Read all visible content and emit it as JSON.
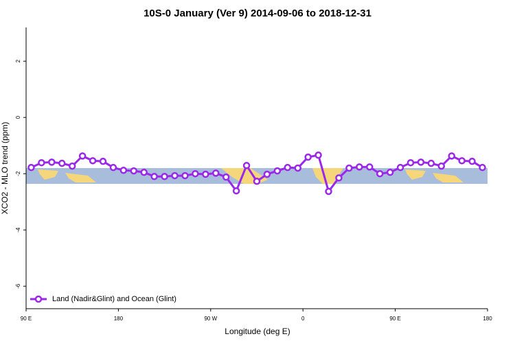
{
  "chart_data": {
    "type": "line",
    "title": "10S-0 January (Ver 9)   2014-09-06 to 2018-12-31",
    "xlabel": "Longitude (deg E)",
    "ylabel": "XCO2 - MLO trend (ppm)",
    "xlim": [
      90,
      540
    ],
    "ylim": [
      -6.8,
      3.2
    ],
    "xticks": [
      {
        "value": 90,
        "label": "90 E"
      },
      180,
      {
        "value": 270,
        "label": "90 W"
      },
      {
        "value": 360,
        "label": "0"
      },
      {
        "value": 450,
        "label": "90 E"
      },
      {
        "value": 540,
        "label": "180"
      }
    ],
    "yticks": [
      2,
      0,
      -2,
      -4,
      -6
    ],
    "legend": "bottom-left",
    "x": [
      95,
      105,
      115,
      125,
      135,
      145,
      155,
      165,
      175,
      185,
      195,
      205,
      215,
      225,
      235,
      245,
      255,
      265,
      275,
      285,
      295,
      305,
      315,
      325,
      335,
      345,
      355,
      365,
      375,
      385,
      395,
      405,
      415,
      425,
      435,
      445,
      455,
      465,
      475,
      485,
      495,
      505,
      515,
      525,
      535
    ],
    "series": [
      {
        "name": "Land (Nadir&Glint) and Ocean (Glint)",
        "color": "#9b27e8",
        "values": [
          -1.78,
          -1.61,
          -1.59,
          -1.63,
          -1.73,
          -1.37,
          -1.54,
          -1.56,
          -1.78,
          -1.88,
          -1.9,
          -1.95,
          -2.1,
          -2.1,
          -2.07,
          -2.07,
          -2.0,
          -2.02,
          -1.98,
          -2.12,
          -2.61,
          -1.71,
          -2.27,
          -2.02,
          -1.9,
          -1.78,
          -1.8,
          -1.41,
          -1.34,
          -2.63,
          -2.15,
          -1.8,
          -1.76,
          -1.76,
          -2.0,
          -1.95,
          -1.78,
          -1.61,
          -1.59,
          -1.63,
          -1.73,
          -1.37,
          -1.54,
          -1.56,
          -1.78
        ]
      }
    ]
  }
}
